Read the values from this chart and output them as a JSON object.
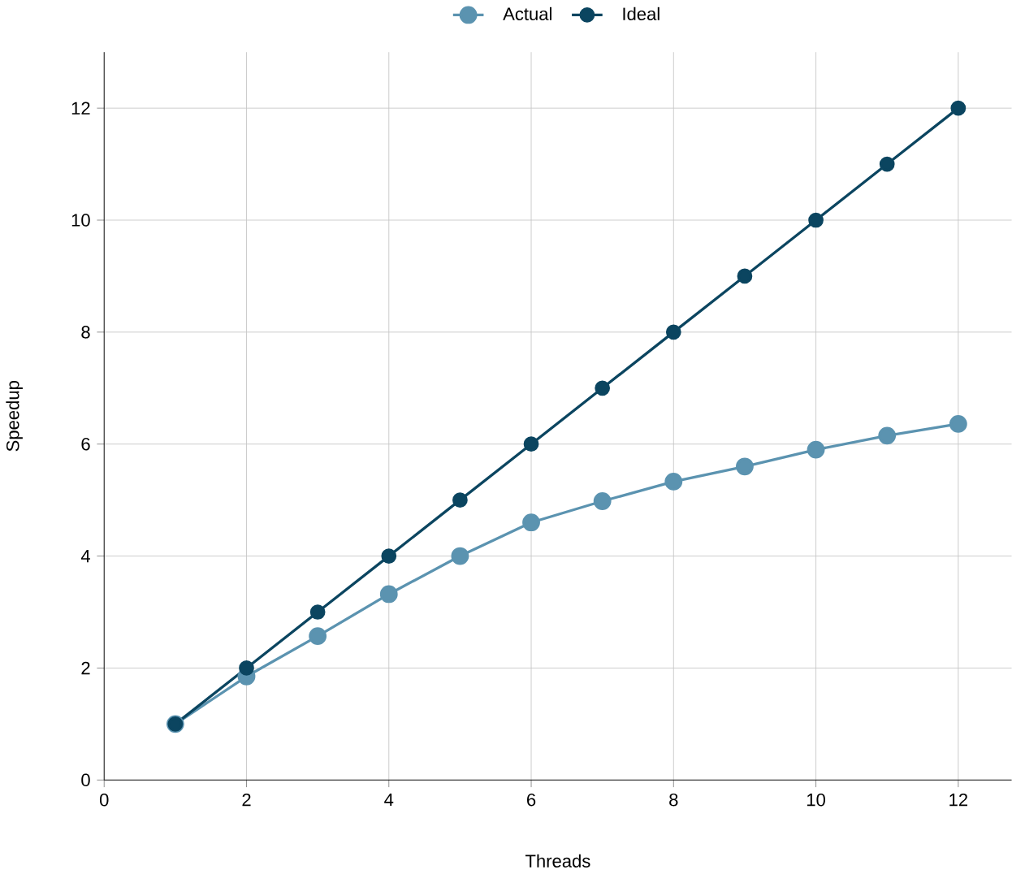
{
  "chart_data": {
    "type": "line",
    "xlabel": "Threads",
    "ylabel": "Speedup",
    "x": [
      1,
      2,
      3,
      4,
      5,
      6,
      7,
      8,
      9,
      10,
      11,
      12
    ],
    "series": [
      {
        "name": "Actual",
        "color": "#5b93b0",
        "values": [
          1,
          1.85,
          2.57,
          3.32,
          4.0,
          4.6,
          4.98,
          5.33,
          5.6,
          5.9,
          6.15,
          6.36
        ]
      },
      {
        "name": "Ideal",
        "color": "#0b4560",
        "values": [
          1,
          2,
          3,
          4,
          5,
          6,
          7,
          8,
          9,
          10,
          11,
          12
        ]
      }
    ],
    "xlim": [
      0,
      12.75
    ],
    "ylim": [
      0,
      13
    ],
    "xticks": [
      0,
      2,
      4,
      6,
      8,
      10,
      12
    ],
    "yticks": [
      0,
      2,
      4,
      6,
      8,
      10,
      12
    ],
    "grid": true,
    "legend": "top",
    "marker": "circle",
    "line_style": "solid"
  }
}
